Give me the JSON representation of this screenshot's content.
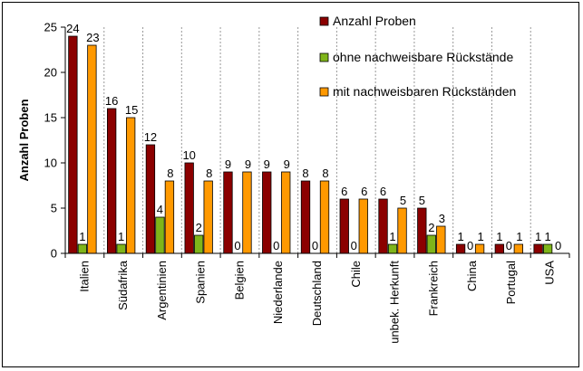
{
  "chart_data": {
    "type": "bar",
    "title": "",
    "xlabel": "",
    "ylabel": "Anzahl Proben",
    "ylim": [
      0,
      25
    ],
    "yticks": [
      0,
      5,
      10,
      15,
      20,
      25
    ],
    "legend_position": "top-right",
    "categories": [
      "Italien",
      "Südafrika",
      "Argentinien",
      "Spanien",
      "Belgien",
      "Niederlande",
      "Deutschland",
      "Chile",
      "unbek. Herkunft",
      "Frankreich",
      "China",
      "Portugal",
      "USA"
    ],
    "series": [
      {
        "name": "Anzahl Proben",
        "color": "#8B0000",
        "values": [
          24,
          16,
          12,
          10,
          9,
          9,
          8,
          6,
          6,
          5,
          1,
          1,
          1
        ]
      },
      {
        "name": "ohne nachweisbare Rückstände",
        "color": "#7FB51A",
        "values": [
          1,
          1,
          4,
          2,
          0,
          0,
          0,
          0,
          1,
          2,
          0,
          0,
          1
        ]
      },
      {
        "name": "mit nachweisbaren Rückständen",
        "color": "#FF9900",
        "values": [
          23,
          15,
          8,
          8,
          9,
          9,
          8,
          6,
          5,
          3,
          1,
          1,
          0
        ]
      }
    ]
  }
}
